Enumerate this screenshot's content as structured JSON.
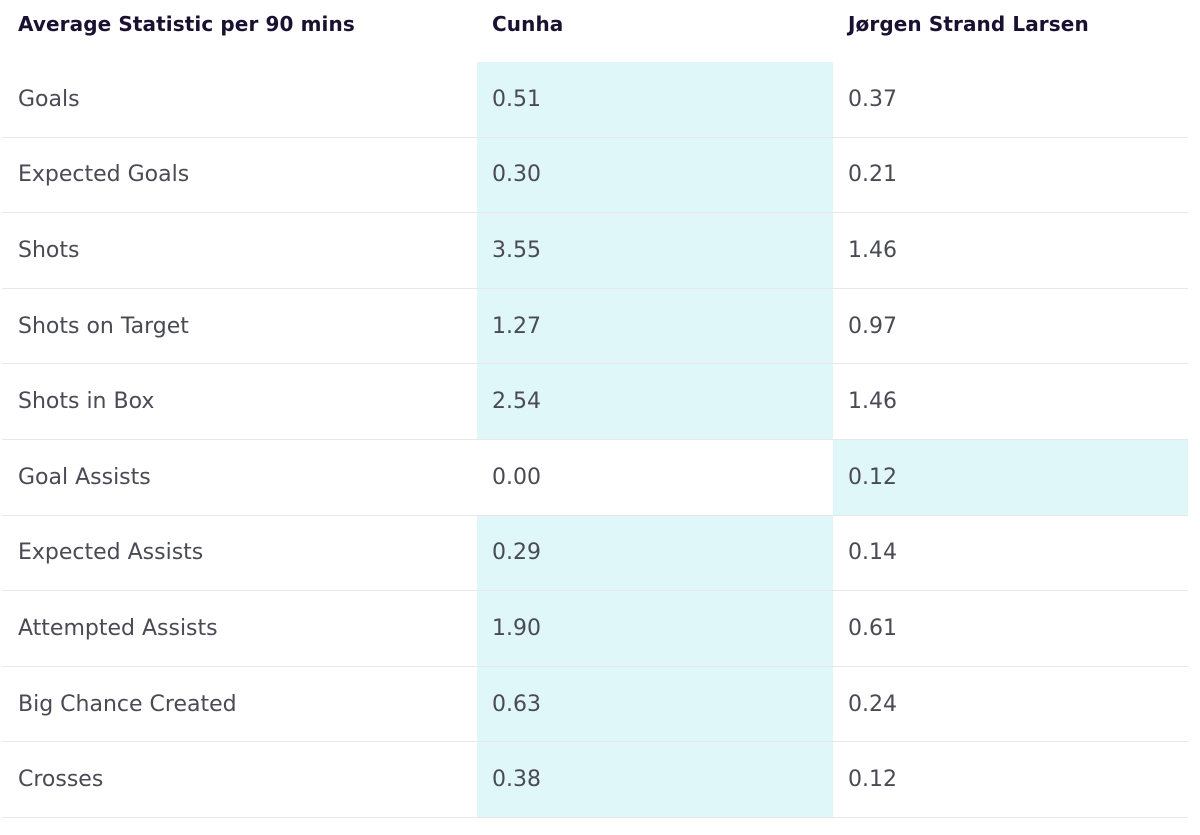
{
  "header": {
    "stat_label": "Average Statistic per 90 mins",
    "player1": "Cunha",
    "player2": "Jørgen Strand Larsen"
  },
  "highlight_color": "#e0f7fa",
  "rows": [
    {
      "stat": "Goals",
      "p1": "0.51",
      "p2": "0.37",
      "leader": "p1"
    },
    {
      "stat": "Expected Goals",
      "p1": "0.30",
      "p2": "0.21",
      "leader": "p1"
    },
    {
      "stat": "Shots",
      "p1": "3.55",
      "p2": "1.46",
      "leader": "p1"
    },
    {
      "stat": "Shots on Target",
      "p1": "1.27",
      "p2": "0.97",
      "leader": "p1"
    },
    {
      "stat": "Shots in Box",
      "p1": "2.54",
      "p2": "1.46",
      "leader": "p1"
    },
    {
      "stat": "Goal Assists",
      "p1": "0.00",
      "p2": "0.12",
      "leader": "p2"
    },
    {
      "stat": "Expected Assists",
      "p1": "0.29",
      "p2": "0.14",
      "leader": "p1"
    },
    {
      "stat": "Attempted Assists",
      "p1": "1.90",
      "p2": "0.61",
      "leader": "p1"
    },
    {
      "stat": "Big Chance Created",
      "p1": "0.63",
      "p2": "0.24",
      "leader": "p1"
    },
    {
      "stat": "Crosses",
      "p1": "0.38",
      "p2": "0.12",
      "leader": "p1"
    }
  ]
}
